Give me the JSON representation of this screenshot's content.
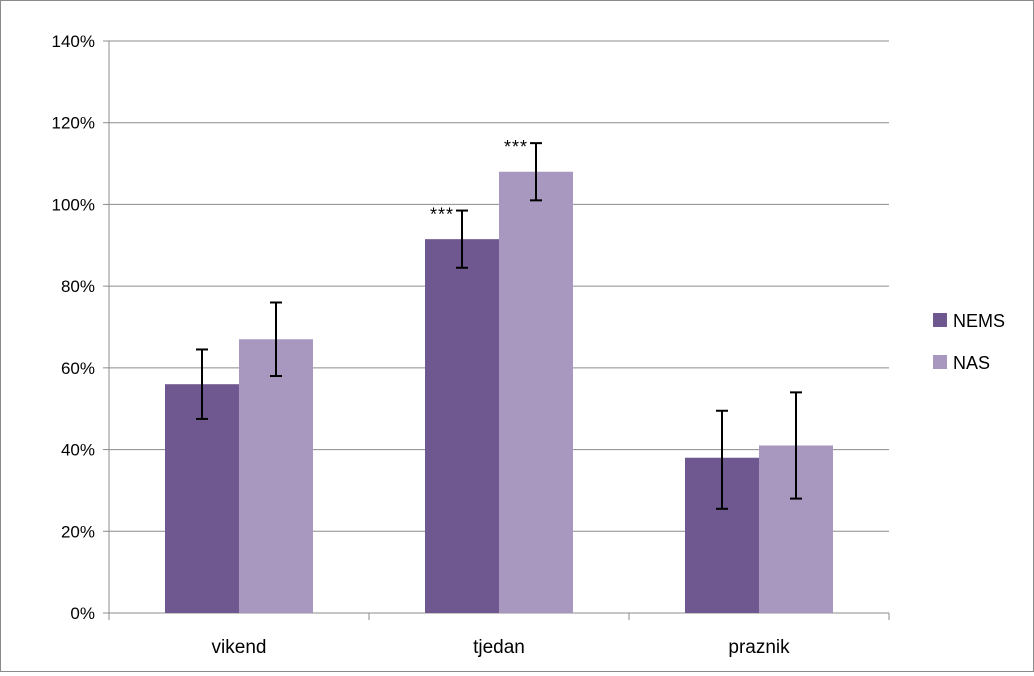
{
  "chart_data": {
    "type": "bar",
    "categories": [
      "vikend",
      "tjedan",
      "praznik"
    ],
    "series": [
      {
        "name": "NEMS",
        "values": [
          0.56,
          0.915,
          0.38
        ],
        "error_low": [
          0.475,
          0.845,
          0.255
        ],
        "error_high": [
          0.645,
          0.985,
          0.495
        ]
      },
      {
        "name": "NAS",
        "values": [
          0.67,
          1.08,
          0.41
        ],
        "error_low": [
          0.58,
          1.01,
          0.28
        ],
        "error_high": [
          0.76,
          1.15,
          0.54
        ]
      }
    ],
    "annotations": [
      {
        "category": "tjedan",
        "series": "NEMS",
        "text": "***"
      },
      {
        "category": "tjedan",
        "series": "NAS",
        "text": "***"
      }
    ],
    "ylim": [
      0,
      1.4
    ],
    "yticks": [
      "0%",
      "20%",
      "40%",
      "60%",
      "80%",
      "100%",
      "120%",
      "140%"
    ],
    "grid": true,
    "legend_position": "right",
    "colors": {
      "NEMS": "#6f588f",
      "NAS": "#a898c0",
      "grid": "#8c8c8c",
      "error_bar": "#000000"
    }
  }
}
